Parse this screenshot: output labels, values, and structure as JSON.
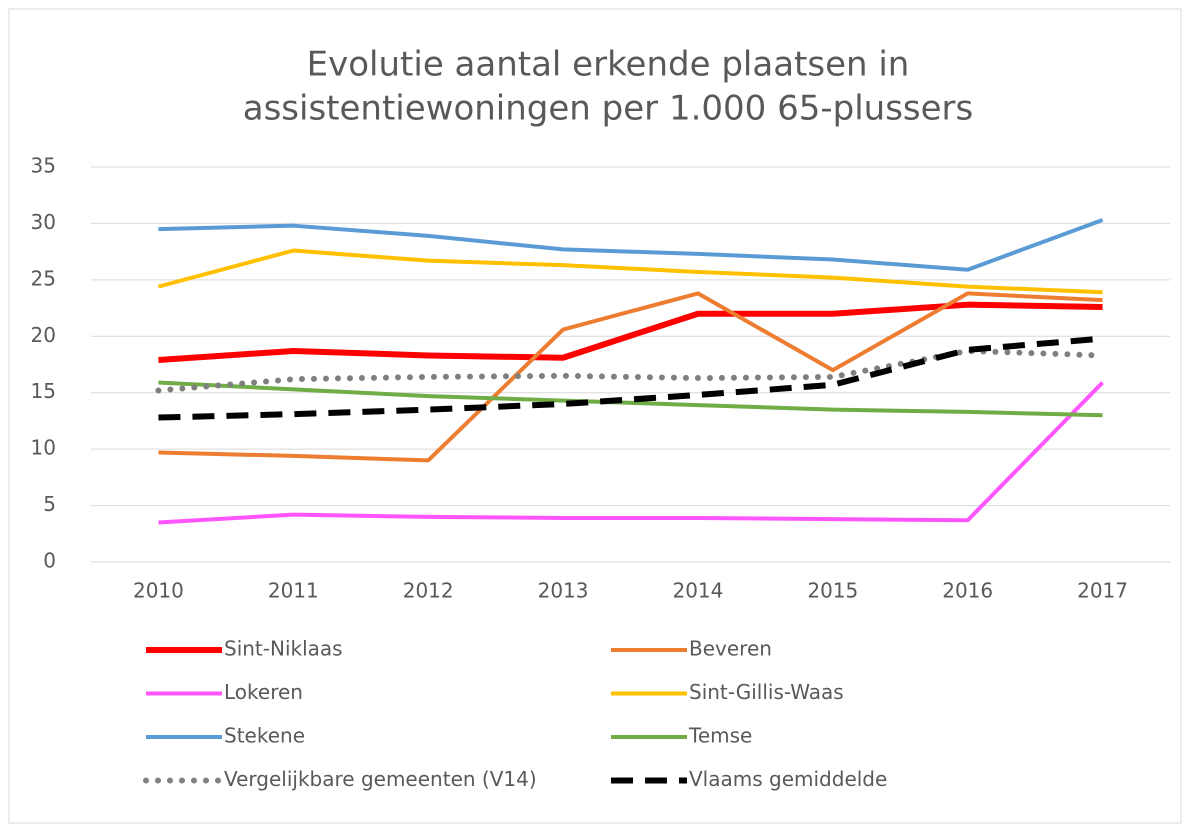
{
  "chart_data": {
    "type": "line",
    "title": [
      "Evolutie aantal erkende plaatsen in",
      "assistentiewoningen per 1.000 65-plussers"
    ],
    "categories": [
      "2010",
      "2011",
      "2012",
      "2013",
      "2014",
      "2015",
      "2016",
      "2017"
    ],
    "ylim": [
      0,
      35
    ],
    "yticks": [
      0,
      5,
      10,
      15,
      20,
      25,
      30,
      35
    ],
    "grid": true,
    "series": [
      {
        "name": "Sint-Niklaas",
        "color": "#ff0000",
        "style": "solid",
        "values": [
          17.9,
          18.7,
          18.3,
          18.1,
          22.0,
          22.0,
          22.8,
          22.6
        ]
      },
      {
        "name": "Beveren",
        "color": "#ed7d31",
        "style": "solid",
        "values": [
          9.7,
          9.4,
          9.0,
          20.6,
          23.8,
          17.0,
          23.8,
          23.2
        ]
      },
      {
        "name": "Lokeren",
        "color": "#ff55ff",
        "style": "solid",
        "values": [
          3.5,
          4.2,
          4.0,
          3.9,
          3.9,
          3.8,
          3.7,
          15.9
        ]
      },
      {
        "name": "Sint-Gillis-Waas",
        "color": "#ffc000",
        "style": "solid",
        "values": [
          24.4,
          27.6,
          26.7,
          26.3,
          25.7,
          25.2,
          24.4,
          23.9
        ]
      },
      {
        "name": "Stekene",
        "color": "#5b9bd5",
        "style": "solid",
        "values": [
          29.5,
          29.8,
          28.9,
          27.7,
          27.3,
          26.8,
          25.9,
          30.3
        ]
      },
      {
        "name": "Temse",
        "color": "#70ad47",
        "style": "solid",
        "values": [
          15.9,
          15.3,
          14.7,
          14.3,
          13.9,
          13.5,
          13.3,
          13.0
        ]
      },
      {
        "name": "Vergelijkbare gemeenten (V14)",
        "color": "#7f7f7f",
        "style": "dotted",
        "values": [
          15.2,
          16.2,
          16.4,
          16.5,
          16.3,
          16.4,
          18.7,
          18.3
        ]
      },
      {
        "name": "Vlaams gemiddelde",
        "color": "#000000",
        "style": "dashed",
        "values": [
          12.8,
          13.1,
          13.5,
          14.0,
          14.8,
          15.7,
          18.8,
          19.8
        ]
      }
    ]
  }
}
